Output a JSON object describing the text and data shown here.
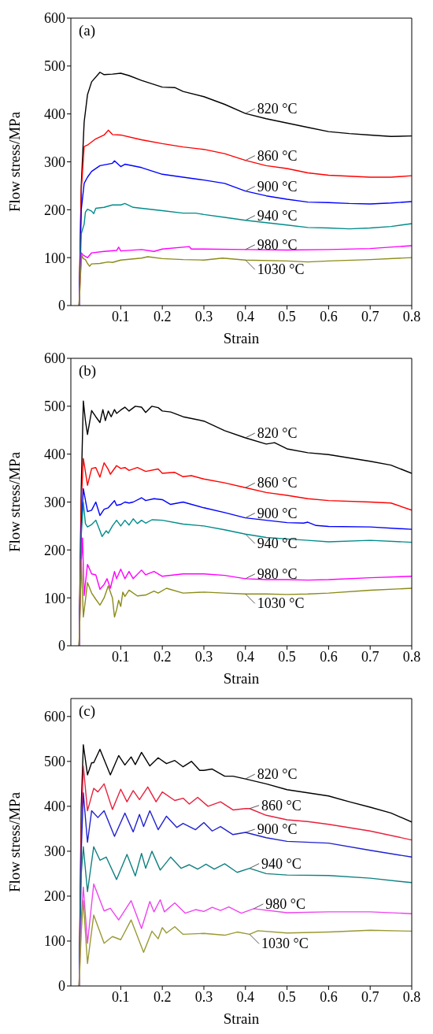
{
  "chart_data": [
    {
      "type": "line",
      "title": "(a)",
      "xlabel": "Strain",
      "ylabel": "Flow stress/MPa",
      "xlim": [
        -0.02,
        0.8
      ],
      "ylim": [
        0,
        600
      ],
      "xticks": [
        0.1,
        0.2,
        0.3,
        0.4,
        0.5,
        0.6,
        0.7,
        0.8
      ],
      "yticks": [
        0,
        100,
        200,
        300,
        400,
        500,
        600
      ],
      "series": [
        {
          "name": "820 °C",
          "color": "#000000",
          "x": [
            0,
            0.005,
            0.012,
            0.02,
            0.03,
            0.05,
            0.06,
            0.08,
            0.1,
            0.12,
            0.15,
            0.2,
            0.23,
            0.25,
            0.3,
            0.35,
            0.4,
            0.45,
            0.5,
            0.55,
            0.6,
            0.65,
            0.7,
            0.75,
            0.8
          ],
          "values": [
            0,
            250,
            383,
            440,
            467,
            487,
            482,
            483,
            485,
            480,
            470,
            456,
            455,
            447,
            436,
            420,
            401,
            390,
            381,
            372,
            363,
            359,
            356,
            353,
            354
          ]
        },
        {
          "name": "860 °C",
          "color": "#ff0000",
          "x": [
            0,
            0.005,
            0.012,
            0.02,
            0.04,
            0.06,
            0.07,
            0.08,
            0.1,
            0.15,
            0.2,
            0.25,
            0.3,
            0.35,
            0.4,
            0.45,
            0.5,
            0.55,
            0.6,
            0.7,
            0.75,
            0.8
          ],
          "values": [
            0,
            240,
            332,
            335,
            348,
            356,
            366,
            357,
            356,
            346,
            338,
            331,
            326,
            317,
            303,
            292,
            286,
            277,
            272,
            268,
            268,
            271
          ]
        },
        {
          "name": "900 °C",
          "color": "#0000ff",
          "x": [
            0,
            0.005,
            0.012,
            0.02,
            0.03,
            0.05,
            0.08,
            0.085,
            0.1,
            0.11,
            0.15,
            0.2,
            0.25,
            0.3,
            0.35,
            0.4,
            0.45,
            0.5,
            0.55,
            0.6,
            0.65,
            0.7,
            0.75,
            0.8
          ],
          "values": [
            0,
            200,
            255,
            268,
            280,
            292,
            297,
            302,
            290,
            295,
            288,
            274,
            268,
            262,
            255,
            239,
            229,
            222,
            216,
            215,
            213,
            212,
            214,
            217
          ]
        },
        {
          "name": "940 °C",
          "color": "#008b8b",
          "x": [
            0,
            0.005,
            0.012,
            0.015,
            0.02,
            0.03,
            0.035,
            0.04,
            0.06,
            0.08,
            0.1,
            0.11,
            0.13,
            0.15,
            0.2,
            0.25,
            0.28,
            0.3,
            0.35,
            0.4,
            0.45,
            0.5,
            0.55,
            0.6,
            0.65,
            0.7,
            0.75,
            0.8
          ],
          "values": [
            0,
            150,
            170,
            195,
            201,
            197,
            192,
            203,
            205,
            210,
            210,
            213,
            205,
            203,
            198,
            193,
            193,
            190,
            184,
            178,
            173,
            168,
            163,
            162,
            160,
            162,
            165,
            171
          ]
        },
        {
          "name": "980 °C",
          "color": "#ff00ff",
          "x": [
            0,
            0.005,
            0.01,
            0.02,
            0.03,
            0.06,
            0.09,
            0.095,
            0.1,
            0.15,
            0.18,
            0.2,
            0.265,
            0.27,
            0.3,
            0.4,
            0.5,
            0.6,
            0.7,
            0.8
          ],
          "values": [
            0,
            110,
            105,
            100,
            110,
            113,
            115,
            122,
            114,
            117,
            113,
            118,
            123,
            118,
            118,
            117,
            116,
            117,
            119,
            125
          ]
        },
        {
          "name": "1030 °C",
          "color": "#8b8b1a",
          "x": [
            0,
            0.003,
            0.006,
            0.01,
            0.015,
            0.02,
            0.025,
            0.03,
            0.05,
            0.07,
            0.08,
            0.1,
            0.15,
            0.165,
            0.2,
            0.25,
            0.3,
            0.345,
            0.4,
            0.5,
            0.55,
            0.6,
            0.7,
            0.8
          ],
          "values": [
            0,
            60,
            105,
            98,
            96,
            88,
            82,
            87,
            88,
            91,
            90,
            95,
            99,
            102,
            98,
            96,
            95,
            99,
            95,
            93,
            91,
            93,
            96,
            100
          ]
        }
      ]
    },
    {
      "type": "line",
      "title": "(b)",
      "xlabel": "Strain",
      "ylabel": "Flow stress/MPa",
      "xlim": [
        -0.02,
        0.8
      ],
      "ylim": [
        0,
        600
      ],
      "xticks": [
        0.1,
        0.2,
        0.3,
        0.4,
        0.5,
        0.6,
        0.7,
        0.8
      ],
      "yticks": [
        0,
        100,
        200,
        300,
        400,
        500,
        600
      ],
      "series": [
        {
          "name": "820 °C",
          "color": "#000000",
          "x": [
            0,
            0.005,
            0.01,
            0.015,
            0.02,
            0.03,
            0.04,
            0.05,
            0.057,
            0.063,
            0.07,
            0.077,
            0.085,
            0.09,
            0.1,
            0.11,
            0.12,
            0.135,
            0.15,
            0.16,
            0.175,
            0.19,
            0.2,
            0.22,
            0.25,
            0.3,
            0.35,
            0.4,
            0.45,
            0.47,
            0.5,
            0.55,
            0.6,
            0.65,
            0.7,
            0.75,
            0.8
          ],
          "values": [
            0,
            330,
            511,
            470,
            441,
            491,
            478,
            466,
            493,
            470,
            490,
            478,
            493,
            485,
            492,
            498,
            490,
            500,
            498,
            487,
            500,
            497,
            490,
            488,
            478,
            469,
            449,
            434,
            421,
            424,
            411,
            403,
            399,
            392,
            385,
            377,
            360
          ]
        },
        {
          "name": "860 °C",
          "color": "#ff0000",
          "x": [
            0,
            0.005,
            0.01,
            0.02,
            0.03,
            0.04,
            0.05,
            0.06,
            0.07,
            0.075,
            0.09,
            0.1,
            0.11,
            0.12,
            0.14,
            0.16,
            0.19,
            0.2,
            0.23,
            0.25,
            0.27,
            0.3,
            0.35,
            0.4,
            0.45,
            0.5,
            0.55,
            0.6,
            0.7,
            0.75,
            0.8
          ],
          "values": [
            0,
            300,
            391,
            335,
            370,
            372,
            352,
            382,
            368,
            358,
            376,
            370,
            372,
            366,
            372,
            364,
            369,
            360,
            362,
            353,
            355,
            348,
            340,
            330,
            320,
            314,
            307,
            303,
            300,
            298,
            283
          ]
        },
        {
          "name": "900 °C",
          "color": "#0000ff",
          "x": [
            0,
            0.005,
            0.01,
            0.02,
            0.03,
            0.04,
            0.05,
            0.06,
            0.07,
            0.085,
            0.09,
            0.1,
            0.11,
            0.12,
            0.13,
            0.15,
            0.16,
            0.18,
            0.2,
            0.22,
            0.25,
            0.3,
            0.35,
            0.4,
            0.45,
            0.5,
            0.54,
            0.55,
            0.57,
            0.6,
            0.7,
            0.8
          ],
          "values": [
            0,
            250,
            328,
            280,
            283,
            300,
            272,
            285,
            288,
            303,
            293,
            295,
            300,
            298,
            300,
            309,
            303,
            307,
            305,
            295,
            300,
            288,
            278,
            267,
            262,
            257,
            256,
            258,
            251,
            249,
            248,
            243
          ]
        },
        {
          "name": "940 °C",
          "color": "#008b8b",
          "x": [
            0,
            0.005,
            0.01,
            0.015,
            0.02,
            0.03,
            0.04,
            0.05,
            0.055,
            0.065,
            0.07,
            0.08,
            0.09,
            0.1,
            0.11,
            0.12,
            0.13,
            0.14,
            0.15,
            0.16,
            0.175,
            0.2,
            0.25,
            0.3,
            0.35,
            0.4,
            0.45,
            0.5,
            0.55,
            0.6,
            0.7,
            0.8
          ],
          "values": [
            0,
            230,
            300,
            255,
            248,
            253,
            262,
            240,
            228,
            240,
            235,
            250,
            262,
            250,
            262,
            252,
            265,
            255,
            262,
            256,
            263,
            262,
            254,
            250,
            242,
            233,
            226,
            223,
            220,
            217,
            220,
            216
          ]
        },
        {
          "name": "980 °C",
          "color": "#ff00ff",
          "x": [
            0,
            0.005,
            0.008,
            0.012,
            0.015,
            0.02,
            0.03,
            0.04,
            0.05,
            0.06,
            0.067,
            0.075,
            0.085,
            0.09,
            0.1,
            0.11,
            0.12,
            0.13,
            0.15,
            0.16,
            0.18,
            0.2,
            0.25,
            0.3,
            0.35,
            0.4,
            0.45,
            0.5,
            0.55,
            0.6,
            0.7,
            0.8
          ],
          "values": [
            0,
            175,
            225,
            105,
            130,
            170,
            150,
            148,
            118,
            128,
            140,
            120,
            155,
            140,
            160,
            140,
            155,
            140,
            158,
            148,
            155,
            145,
            150,
            150,
            147,
            140,
            138,
            138,
            137,
            138,
            142,
            145
          ]
        },
        {
          "name": "1030 °C",
          "color": "#8b8b1a",
          "x": [
            0,
            0.005,
            0.01,
            0.015,
            0.02,
            0.03,
            0.04,
            0.05,
            0.06,
            0.07,
            0.08,
            0.085,
            0.09,
            0.095,
            0.1,
            0.105,
            0.11,
            0.12,
            0.14,
            0.16,
            0.18,
            0.19,
            0.21,
            0.25,
            0.3,
            0.35,
            0.4,
            0.45,
            0.5,
            0.55,
            0.6,
            0.7,
            0.8
          ],
          "values": [
            0,
            180,
            60,
            95,
            132,
            110,
            97,
            85,
            100,
            125,
            100,
            60,
            75,
            95,
            82,
            112,
            103,
            116,
            104,
            106,
            114,
            110,
            120,
            110,
            112,
            110,
            108,
            108,
            107,
            108,
            110,
            116,
            120
          ]
        }
      ]
    },
    {
      "type": "line",
      "title": "(c)",
      "xlabel": "Strain",
      "ylabel": "Flow stress/MPa",
      "xlim": [
        -0.02,
        0.8
      ],
      "ylim": [
        0,
        640
      ],
      "xticks": [
        0.1,
        0.2,
        0.3,
        0.4,
        0.5,
        0.6,
        0.7,
        0.8
      ],
      "yticks": [
        0,
        100,
        200,
        300,
        400,
        500,
        600
      ],
      "series": [
        {
          "name": "820 °C",
          "color": "#000000",
          "x": [
            0,
            0.005,
            0.01,
            0.02,
            0.03,
            0.035,
            0.05,
            0.075,
            0.095,
            0.11,
            0.125,
            0.135,
            0.15,
            0.17,
            0.19,
            0.21,
            0.23,
            0.25,
            0.27,
            0.29,
            0.3,
            0.32,
            0.35,
            0.37,
            0.4,
            0.45,
            0.5,
            0.55,
            0.6,
            0.65,
            0.7,
            0.75,
            0.8
          ],
          "values": [
            0,
            400,
            537,
            470,
            497,
            497,
            527,
            470,
            513,
            492,
            510,
            493,
            520,
            490,
            508,
            495,
            502,
            488,
            500,
            480,
            480,
            483,
            467,
            467,
            461,
            450,
            437,
            430,
            423,
            410,
            398,
            385,
            365
          ]
        },
        {
          "name": "860 °C",
          "color": "#e8203c",
          "x": [
            0,
            0.005,
            0.01,
            0.02,
            0.035,
            0.045,
            0.06,
            0.08,
            0.1,
            0.115,
            0.13,
            0.145,
            0.165,
            0.185,
            0.2,
            0.23,
            0.25,
            0.265,
            0.285,
            0.31,
            0.34,
            0.37,
            0.4,
            0.41,
            0.45,
            0.5,
            0.55,
            0.6,
            0.7,
            0.8
          ],
          "values": [
            0,
            350,
            490,
            390,
            440,
            432,
            450,
            393,
            438,
            410,
            435,
            415,
            443,
            410,
            432,
            413,
            418,
            405,
            420,
            400,
            410,
            392,
            395,
            395,
            380,
            370,
            366,
            360,
            345,
            325
          ]
        },
        {
          "name": "900 °C",
          "color": "#2020d0",
          "x": [
            0,
            0.005,
            0.01,
            0.02,
            0.03,
            0.045,
            0.06,
            0.085,
            0.11,
            0.13,
            0.145,
            0.155,
            0.17,
            0.19,
            0.21,
            0.235,
            0.25,
            0.28,
            0.3,
            0.32,
            0.34,
            0.37,
            0.4,
            0.45,
            0.5,
            0.6,
            0.7,
            0.8
          ],
          "values": [
            0,
            300,
            430,
            320,
            390,
            375,
            390,
            333,
            385,
            343,
            382,
            355,
            390,
            348,
            378,
            353,
            362,
            348,
            364,
            345,
            355,
            337,
            342,
            330,
            322,
            318,
            302,
            287
          ]
        },
        {
          "name": "940 °C",
          "color": "#108080",
          "x": [
            0,
            0.005,
            0.01,
            0.02,
            0.035,
            0.05,
            0.065,
            0.09,
            0.115,
            0.135,
            0.15,
            0.16,
            0.175,
            0.195,
            0.22,
            0.245,
            0.265,
            0.285,
            0.305,
            0.325,
            0.35,
            0.38,
            0.41,
            0.45,
            0.5,
            0.6,
            0.7,
            0.8
          ],
          "values": [
            0,
            250,
            310,
            210,
            310,
            280,
            287,
            237,
            293,
            245,
            295,
            262,
            300,
            258,
            287,
            262,
            270,
            260,
            271,
            260,
            272,
            253,
            262,
            250,
            247,
            246,
            240,
            230
          ]
        },
        {
          "name": "980 °C",
          "color": "#ee44ee",
          "x": [
            0,
            0.005,
            0.01,
            0.02,
            0.035,
            0.06,
            0.075,
            0.095,
            0.125,
            0.15,
            0.17,
            0.18,
            0.195,
            0.205,
            0.23,
            0.255,
            0.28,
            0.3,
            0.32,
            0.34,
            0.36,
            0.39,
            0.42,
            0.5,
            0.6,
            0.7,
            0.8
          ],
          "values": [
            0,
            150,
            220,
            95,
            227,
            167,
            173,
            147,
            190,
            128,
            188,
            165,
            192,
            165,
            185,
            162,
            170,
            166,
            175,
            168,
            176,
            162,
            172,
            163,
            165,
            165,
            161
          ]
        },
        {
          "name": "1030 °C",
          "color": "#999933",
          "x": [
            0,
            0.005,
            0.01,
            0.02,
            0.035,
            0.06,
            0.08,
            0.1,
            0.125,
            0.155,
            0.175,
            0.19,
            0.2,
            0.21,
            0.23,
            0.25,
            0.3,
            0.35,
            0.38,
            0.41,
            0.43,
            0.5,
            0.6,
            0.7,
            0.8
          ],
          "values": [
            0,
            120,
            190,
            50,
            158,
            95,
            110,
            103,
            147,
            75,
            122,
            105,
            130,
            118,
            132,
            115,
            117,
            113,
            120,
            115,
            123,
            118,
            120,
            124,
            122
          ]
        }
      ]
    }
  ]
}
